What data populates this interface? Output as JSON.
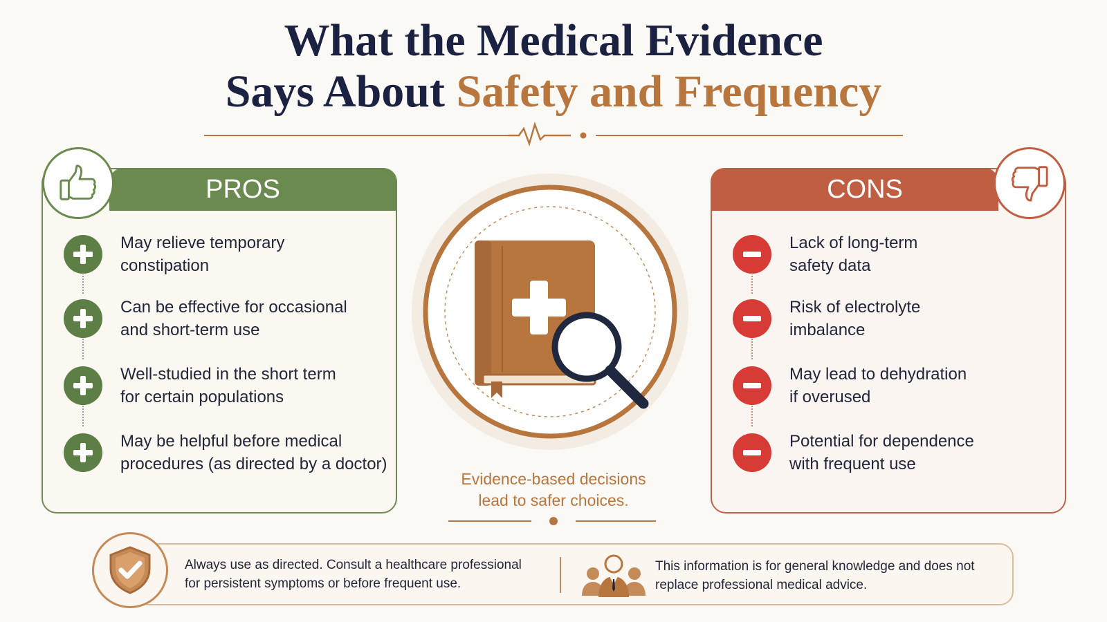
{
  "title": {
    "line1": "What the Medical Evidence",
    "line2_plain": "Says About ",
    "line2_accent": "Safety and Frequency"
  },
  "pros": {
    "header": "PROS",
    "items": [
      "May relieve temporary\nconstipation",
      "Can be effective for occasional\nand short-term use",
      "Well-studied in the short term\nfor certain populations",
      "May be helpful before medical\nprocedures (as directed by a doctor)"
    ]
  },
  "cons": {
    "header": "CONS",
    "items": [
      "Lack of long-term\nsafety data",
      "Risk of electrolyte\nimbalance",
      "May lead to dehydration\nif overused",
      "Potential for dependence\nwith frequent use"
    ]
  },
  "center": {
    "tagline": "Evidence-based decisions\nlead to safer choices."
  },
  "footer": {
    "left_note": "Always use as directed. Consult a healthcare professional\nfor persistent symptoms or before frequent use.",
    "right_note": "This information is for general knowledge and does not\nreplace professional medical advice."
  },
  "icons": {
    "pros_badge": "thumbs-up-icon",
    "cons_badge": "thumbs-down-icon",
    "pros_bullet": "plus-icon",
    "cons_bullet": "minus-icon",
    "center": "medical-book-magnifier-icon",
    "footer_left": "shield-check-icon",
    "footer_right": "people-icon"
  },
  "colors": {
    "title": "#1b2140",
    "accent": "#b8763f",
    "pros": "#6b8a50",
    "cons": "#c05e43",
    "cons_bullet": "#d63b36"
  }
}
